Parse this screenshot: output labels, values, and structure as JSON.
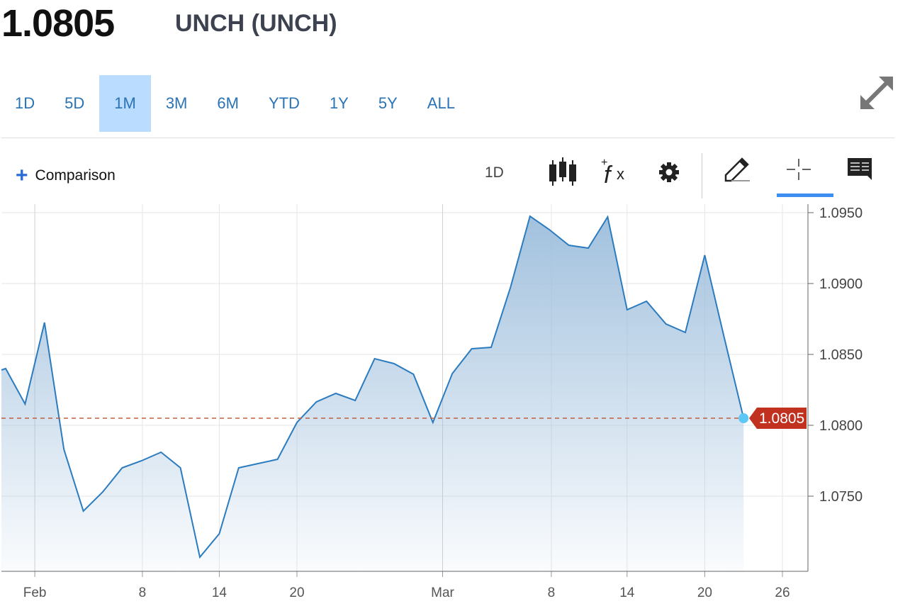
{
  "header": {
    "price": "1.0805",
    "change": "UNCH (UNCH)"
  },
  "ranges": [
    {
      "label": "1D"
    },
    {
      "label": "5D"
    },
    {
      "label": "1M",
      "selected": true
    },
    {
      "label": "3M"
    },
    {
      "label": "6M"
    },
    {
      "label": "YTD"
    },
    {
      "label": "1Y"
    },
    {
      "label": "5Y"
    },
    {
      "label": "ALL"
    }
  ],
  "toolbar": {
    "comparison": "Comparison",
    "interval": "1D",
    "icons": [
      "candlestick-icon",
      "function-icon",
      "gear-icon",
      "pencil-icon",
      "crosshair-icon",
      "comment-icon"
    ],
    "active": "crosshair-icon"
  },
  "colors": {
    "line": "#2b7bbf",
    "area": "#9dbedc",
    "last_label": "#c0321f",
    "last_dot": "#5bc8f5"
  },
  "chart_data": {
    "type": "area",
    "x_unit": "trading session index",
    "values": [
      1.084,
      1.0815,
      1.08725,
      1.0783,
      1.07395,
      1.0753,
      1.077,
      1.0775,
      1.0781,
      1.077,
      1.0707,
      1.07235,
      1.077,
      1.0773,
      1.0776,
      1.0802,
      1.08165,
      1.08225,
      1.08175,
      1.0847,
      1.08435,
      1.0836,
      1.0802,
      1.08365,
      1.0854,
      1.0855,
      1.08975,
      1.09475,
      1.0938,
      1.0927,
      1.0925,
      1.0947,
      1.08815,
      1.08875,
      1.08715,
      1.08655,
      1.092,
      1.0862,
      1.0805
    ],
    "x_ticks": [
      {
        "label": "Feb",
        "at": 1.5
      },
      {
        "label": "8",
        "at": 7.04
      },
      {
        "label": "14",
        "at": 11
      },
      {
        "label": "20",
        "at": 15
      },
      {
        "label": "Mar",
        "at": 22.5
      },
      {
        "label": "8",
        "at": 28.1
      },
      {
        "label": "14",
        "at": 32
      },
      {
        "label": "20",
        "at": 36
      },
      {
        "label": "26",
        "at": 40
      }
    ],
    "y_ticks": [
      {
        "label": "1.0950",
        "v": 1.095
      },
      {
        "label": "1.0900",
        "v": 1.09
      },
      {
        "label": "1.0850",
        "v": 1.085
      },
      {
        "label": "1.0800",
        "v": 1.08
      },
      {
        "label": "1.0750",
        "v": 1.075
      }
    ],
    "ylim": [
      1.0697,
      1.0968
    ],
    "last": {
      "label": "1.0805",
      "v": 1.0805
    },
    "grid": true
  }
}
